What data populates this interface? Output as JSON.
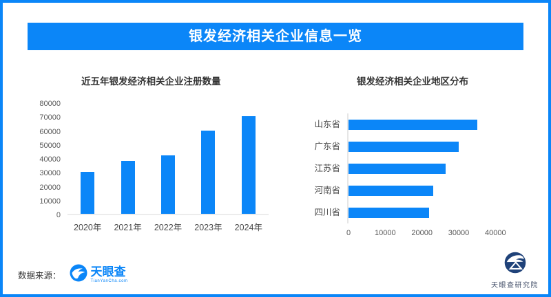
{
  "theme": {
    "accent": "#0b86f8",
    "logo_navy": "#1f4279",
    "title_text_color": "#333333",
    "axis_text_color": "#595959",
    "axis_line_color": "#ececec"
  },
  "header": {
    "title": "银发经济相关企业信息一览"
  },
  "chart_data": [
    {
      "type": "bar",
      "orientation": "vertical",
      "title": "近五年银发经济相关企业注册数量",
      "categories": [
        "2020年",
        "2021年",
        "2022年",
        "2023年",
        "2024年"
      ],
      "values": [
        30000,
        38000,
        42000,
        60000,
        70000
      ],
      "xlabel": "",
      "ylabel": "",
      "ylim": [
        0,
        80000
      ],
      "ytick_step": 10000,
      "grid": false,
      "legend": false,
      "bar_color": "#0b86f8"
    },
    {
      "type": "bar",
      "orientation": "horizontal",
      "title": "银发经济相关企业地区分布",
      "categories": [
        "山东省",
        "广东省",
        "江苏省",
        "河南省",
        "四川省"
      ],
      "values": [
        35000,
        30000,
        26500,
        23000,
        22000
      ],
      "xlabel": "",
      "ylabel": "",
      "xlim": [
        0,
        45000
      ],
      "xticks": [
        0,
        10000,
        20000,
        30000,
        40000
      ],
      "grid": false,
      "legend": false,
      "bar_color": "#0b86f8"
    }
  ],
  "footer": {
    "source_label": "数据来源：",
    "brand_name": "天眼查",
    "brand_url_text": "TianYanCha.com",
    "institute_name": "天眼查研究院"
  }
}
